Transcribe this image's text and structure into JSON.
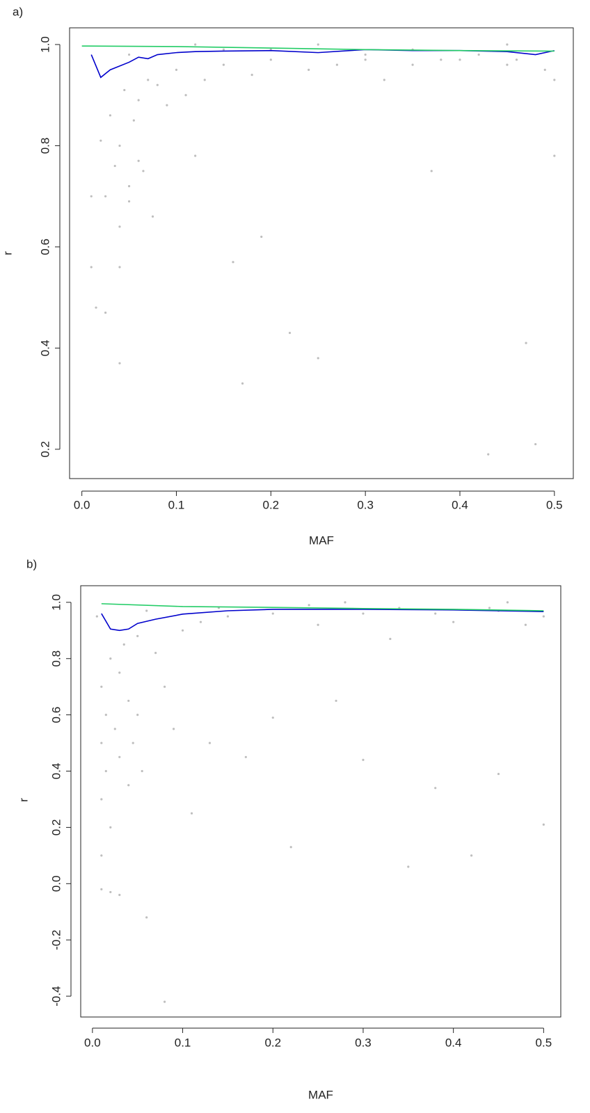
{
  "chart_data": [
    {
      "type": "scatter",
      "label": "a)",
      "xlabel": "MAF",
      "ylabel": "r",
      "xlim": [
        -0.013,
        0.52
      ],
      "ylim": [
        0.142,
        1.033
      ],
      "xticks": [
        {
          "value": 0,
          "label": "0.0"
        },
        0.1,
        0.2,
        0.3,
        0.4,
        0.5
      ],
      "yticks": [
        0.2,
        0.4,
        0.6,
        0.8,
        {
          "value": 1,
          "label": "1.0"
        }
      ],
      "series": [
        {
          "color": "#bebebe",
          "x": [
            0.01,
            0.01,
            0.015,
            0.02,
            0.025,
            0.025,
            0.03,
            0.035,
            0.04,
            0.04,
            0.04,
            0.04,
            0.045,
            0.05,
            0.05,
            0.055,
            0.06,
            0.06,
            0.065,
            0.07,
            0.075,
            0.08,
            0.09,
            0.1,
            0.11,
            0.12,
            0.13,
            0.15,
            0.16,
            0.17,
            0.18,
            0.19,
            0.2,
            0.22,
            0.24,
            0.25,
            0.27,
            0.3,
            0.32,
            0.35,
            0.37,
            0.4,
            0.43,
            0.45,
            0.47,
            0.48,
            0.49,
            0.5,
            0.5,
            0.05,
            0.15,
            0.25,
            0.35,
            0.45,
            0.3,
            0.42,
            0.2,
            0.12,
            0.38,
            0.46
          ],
          "values": [
            0.7,
            0.56,
            0.48,
            0.81,
            0.7,
            0.47,
            0.86,
            0.76,
            0.8,
            0.64,
            0.56,
            0.37,
            0.91,
            0.72,
            0.69,
            0.85,
            0.89,
            0.77,
            0.75,
            0.93,
            0.66,
            0.92,
            0.88,
            0.95,
            0.9,
            0.78,
            0.93,
            0.96,
            0.57,
            0.33,
            0.94,
            0.62,
            0.97,
            0.43,
            0.95,
            0.38,
            0.96,
            0.97,
            0.93,
            0.96,
            0.75,
            0.97,
            0.19,
            0.96,
            0.41,
            0.21,
            0.95,
            0.93,
            0.78,
            0.98,
            0.99,
            1,
            0.99,
            1,
            0.98,
            0.98,
            0.99,
            1,
            0.97,
            0.97
          ]
        },
        {
          "type": "line",
          "color": "#0000cc",
          "x": [
            0.01,
            0.02,
            0.03,
            0.05,
            0.06,
            0.07,
            0.08,
            0.1,
            0.12,
            0.15,
            0.2,
            0.25,
            0.3,
            0.35,
            0.4,
            0.45,
            0.48,
            0.5
          ],
          "values": [
            0.98,
            0.935,
            0.95,
            0.965,
            0.975,
            0.972,
            0.98,
            0.984,
            0.986,
            0.987,
            0.988,
            0.984,
            0.99,
            0.988,
            0.988,
            0.986,
            0.98,
            0.988
          ]
        },
        {
          "type": "line",
          "color": "#22cc66",
          "x": [
            0,
            0.1,
            0.2,
            0.3,
            0.4,
            0.5
          ],
          "values": [
            0.997,
            0.996,
            0.993,
            0.99,
            0.988,
            0.987
          ]
        }
      ]
    },
    {
      "type": "scatter",
      "label": "b)",
      "xlabel": "MAF",
      "ylabel": "r",
      "xlim": [
        -0.013,
        0.519
      ],
      "ylim": [
        -0.474,
        1.059
      ],
      "xticks": [
        {
          "value": 0,
          "label": "0.0"
        },
        0.1,
        0.2,
        0.3,
        0.4,
        0.5
      ],
      "yticks": [
        -0.4,
        -0.2,
        {
          "value": 0,
          "label": "0.0"
        },
        0.2,
        0.4,
        0.6,
        0.8,
        {
          "value": 1,
          "label": "1.0"
        }
      ],
      "series": [
        {
          "color": "#bebebe",
          "x": [
            0.005,
            0.01,
            0.01,
            0.01,
            0.01,
            0.01,
            0.015,
            0.015,
            0.02,
            0.02,
            0.02,
            0.025,
            0.03,
            0.03,
            0.03,
            0.035,
            0.04,
            0.04,
            0.045,
            0.05,
            0.05,
            0.055,
            0.06,
            0.07,
            0.08,
            0.08,
            0.09,
            0.1,
            0.11,
            0.12,
            0.13,
            0.15,
            0.17,
            0.2,
            0.2,
            0.22,
            0.25,
            0.27,
            0.3,
            0.3,
            0.33,
            0.35,
            0.38,
            0.38,
            0.4,
            0.42,
            0.45,
            0.45,
            0.48,
            0.5,
            0.5,
            0.14,
            0.24,
            0.34,
            0.44,
            0.06,
            0.28,
            0.46
          ],
          "values": [
            0.95,
            0.7,
            0.5,
            0.3,
            0.1,
            -0.02,
            0.6,
            0.4,
            0.8,
            0.2,
            -0.03,
            0.55,
            0.75,
            0.45,
            -0.04,
            0.85,
            0.65,
            0.35,
            0.5,
            0.88,
            0.6,
            0.4,
            -0.12,
            0.82,
            0.7,
            -0.42,
            0.55,
            0.9,
            0.25,
            0.93,
            0.5,
            0.95,
            0.45,
            0.96,
            0.59,
            0.13,
            0.92,
            0.65,
            0.96,
            0.44,
            0.87,
            0.06,
            0.96,
            0.34,
            0.93,
            0.1,
            0.97,
            0.39,
            0.92,
            0.21,
            0.95,
            0.98,
            0.99,
            0.98,
            0.98,
            0.97,
            1,
            1
          ]
        },
        {
          "type": "line",
          "color": "#0000cc",
          "x": [
            0.01,
            0.02,
            0.03,
            0.04,
            0.05,
            0.07,
            0.1,
            0.15,
            0.2,
            0.3,
            0.4,
            0.5
          ],
          "values": [
            0.96,
            0.905,
            0.9,
            0.905,
            0.925,
            0.94,
            0.958,
            0.97,
            0.975,
            0.975,
            0.973,
            0.967
          ]
        },
        {
          "type": "line",
          "color": "#22cc66",
          "x": [
            0.01,
            0.1,
            0.2,
            0.3,
            0.4,
            0.5
          ],
          "values": [
            0.995,
            0.985,
            0.982,
            0.978,
            0.975,
            0.97
          ]
        }
      ]
    }
  ]
}
